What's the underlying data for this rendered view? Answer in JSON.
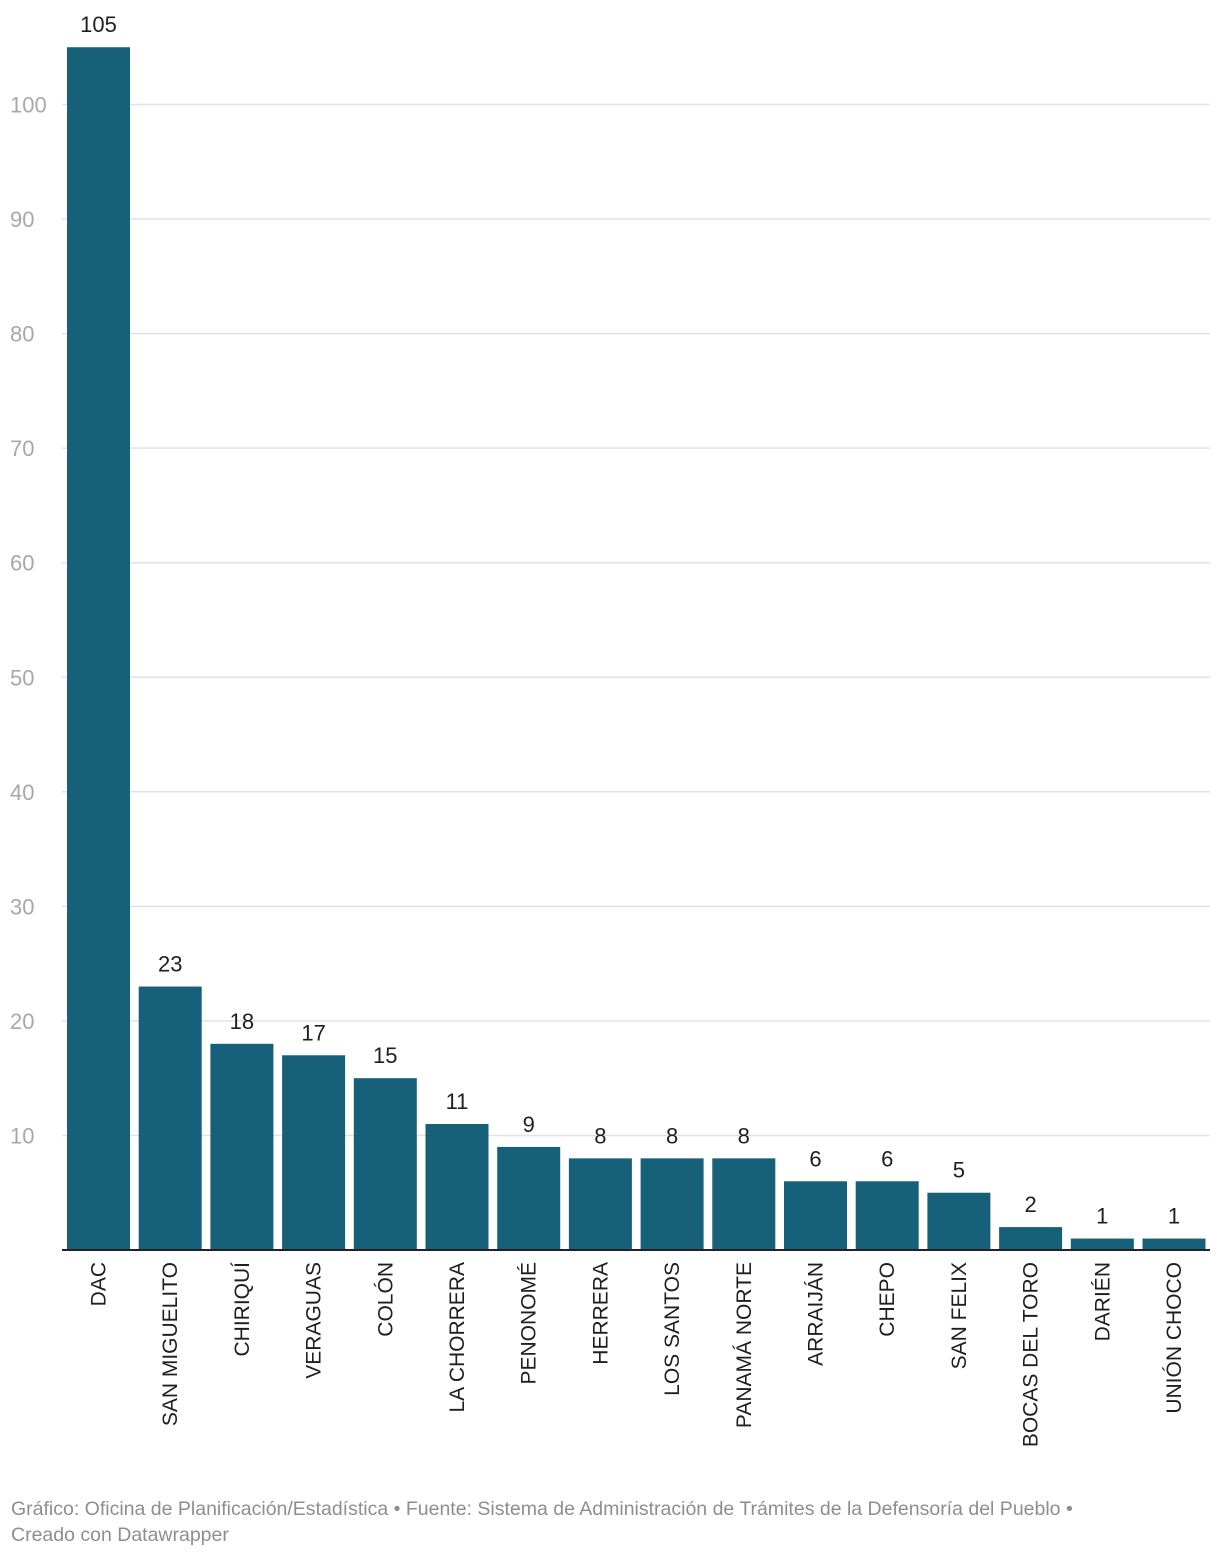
{
  "chart_data": {
    "type": "bar",
    "title": "",
    "xlabel": "",
    "ylabel": "",
    "categories": [
      "DAC",
      "SAN MIGUELITO",
      "CHIRIQUÍ",
      "VERAGUAS",
      "COLÓN",
      "LA CHORRERA",
      "PENONOMÉ",
      "HERRERA",
      "LOS SANTOS",
      "PANAMÁ NORTE",
      "ARRAIJÁN",
      "CHEPO",
      "SAN FELIX",
      "BOCAS DEL TORO",
      "DARIÉN",
      "UNIÓN CHOCO"
    ],
    "values": [
      105,
      23,
      18,
      17,
      15,
      11,
      9,
      8,
      8,
      8,
      6,
      6,
      5,
      2,
      1,
      1
    ],
    "value_labels": [
      "105",
      "23",
      "18",
      "17",
      "15",
      "11",
      "9",
      "8",
      "8",
      "8",
      "6",
      "6",
      "5",
      "2",
      "1",
      "1"
    ],
    "yticks": [
      10,
      20,
      30,
      40,
      50,
      60,
      70,
      80,
      90,
      100
    ],
    "ylim": [
      0,
      105
    ],
    "grid": true,
    "legend": "none",
    "bar_color": "#17607a"
  },
  "footer": {
    "line1": "Gráfico: Oficina de Planificación/Estadística • Fuente: Sistema de Administración de Trámites de la Defensoría del Pueblo •",
    "line2": "Creado con Datawrapper"
  }
}
